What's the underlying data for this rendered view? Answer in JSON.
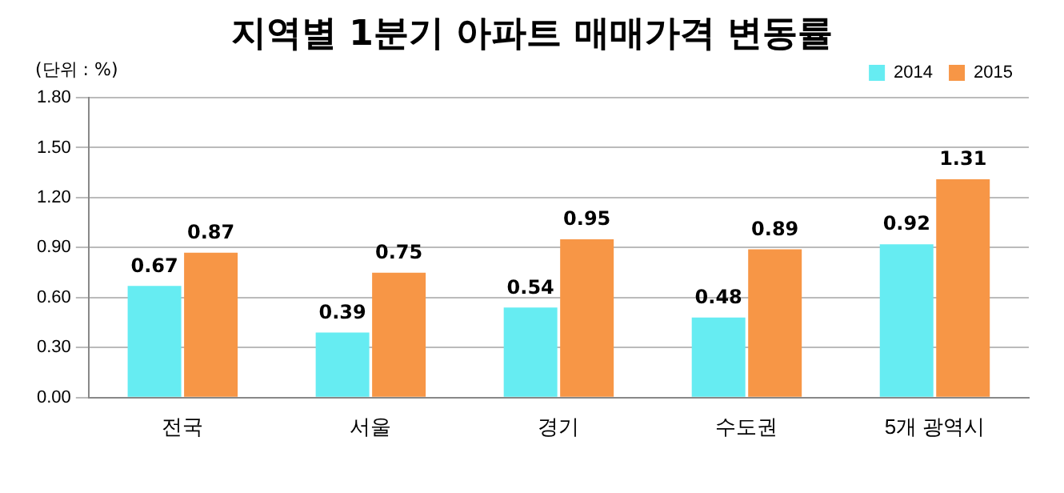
{
  "chart_data": {
    "type": "bar",
    "title": "지역별 1분기 아파트 매매가격 변동률",
    "ylabel": "(단위 : %)",
    "categories": [
      "전국",
      "서울",
      "경기",
      "수도권",
      "5개 광역시"
    ],
    "series": [
      {
        "name": "2014",
        "color": "#66ecf2",
        "values": [
          0.67,
          0.39,
          0.54,
          0.48,
          0.92
        ]
      },
      {
        "name": "2015",
        "color": "#f79646",
        "values": [
          0.87,
          0.75,
          0.95,
          0.89,
          1.31
        ]
      }
    ],
    "ylim": [
      0,
      1.8
    ],
    "yticks": [
      {
        "value": 0,
        "label": "0.00"
      },
      {
        "value": 0.3,
        "label": "0.30"
      },
      {
        "value": 0.6,
        "label": "0.60"
      },
      {
        "value": 0.9,
        "label": "0.90"
      },
      {
        "value": 1.2,
        "label": "1.20"
      },
      {
        "value": 1.5,
        "label": "1.50"
      },
      {
        "value": 1.8,
        "label": "1.80"
      }
    ],
    "grid": "y",
    "legend": "top right",
    "data_labels": true
  }
}
